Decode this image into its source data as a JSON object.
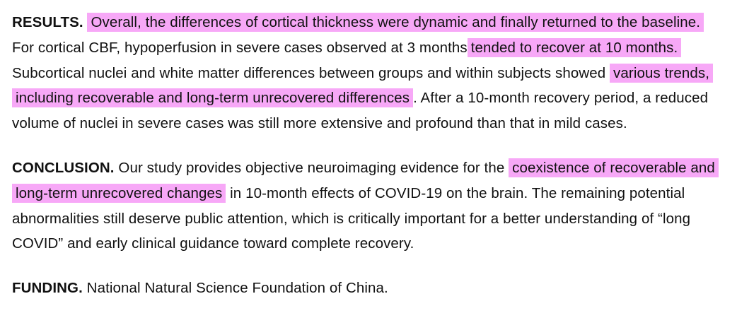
{
  "highlight_color": "#f7a8f7",
  "results": {
    "label": "RESULTS.",
    "segments": [
      {
        "text": "Overall, the differences of cortical thickness were dynamic and finally returned to the baseline.",
        "highlighted": true
      },
      {
        "text": " For cortical CBF, hypoperfusion in severe cases observed at 3 months",
        "highlighted": false
      },
      {
        "text": "tended to recover at 10 months.",
        "highlighted": true
      },
      {
        "text": " Subcortical nuclei and white matter differences between groups and within subjects showed ",
        "highlighted": false
      },
      {
        "text": "various trends, including recoverable and long-term unrecovered differences",
        "highlighted": true
      },
      {
        "text": ". After a 10-month recovery period, a reduced volume of nuclei in severe cases was still more extensive and profound than that in mild cases.",
        "highlighted": false
      }
    ]
  },
  "conclusion": {
    "label": "CONCLUSION.",
    "segments": [
      {
        "text": " Our study provides objective neuroimaging evidence for the ",
        "highlighted": false
      },
      {
        "text": "coexistence of recoverable and long-term unrecovered changes",
        "highlighted": true
      },
      {
        "text": " in 10-month effects of COVID-19 on the brain. The remaining potential abnormalities still deserve public attention, which is critically important for a better understanding of “long COVID” and early clinical guidance toward complete recovery.",
        "highlighted": false
      }
    ]
  },
  "funding": {
    "label": "FUNDING.",
    "text": " National Natural Science Foundation of China."
  }
}
